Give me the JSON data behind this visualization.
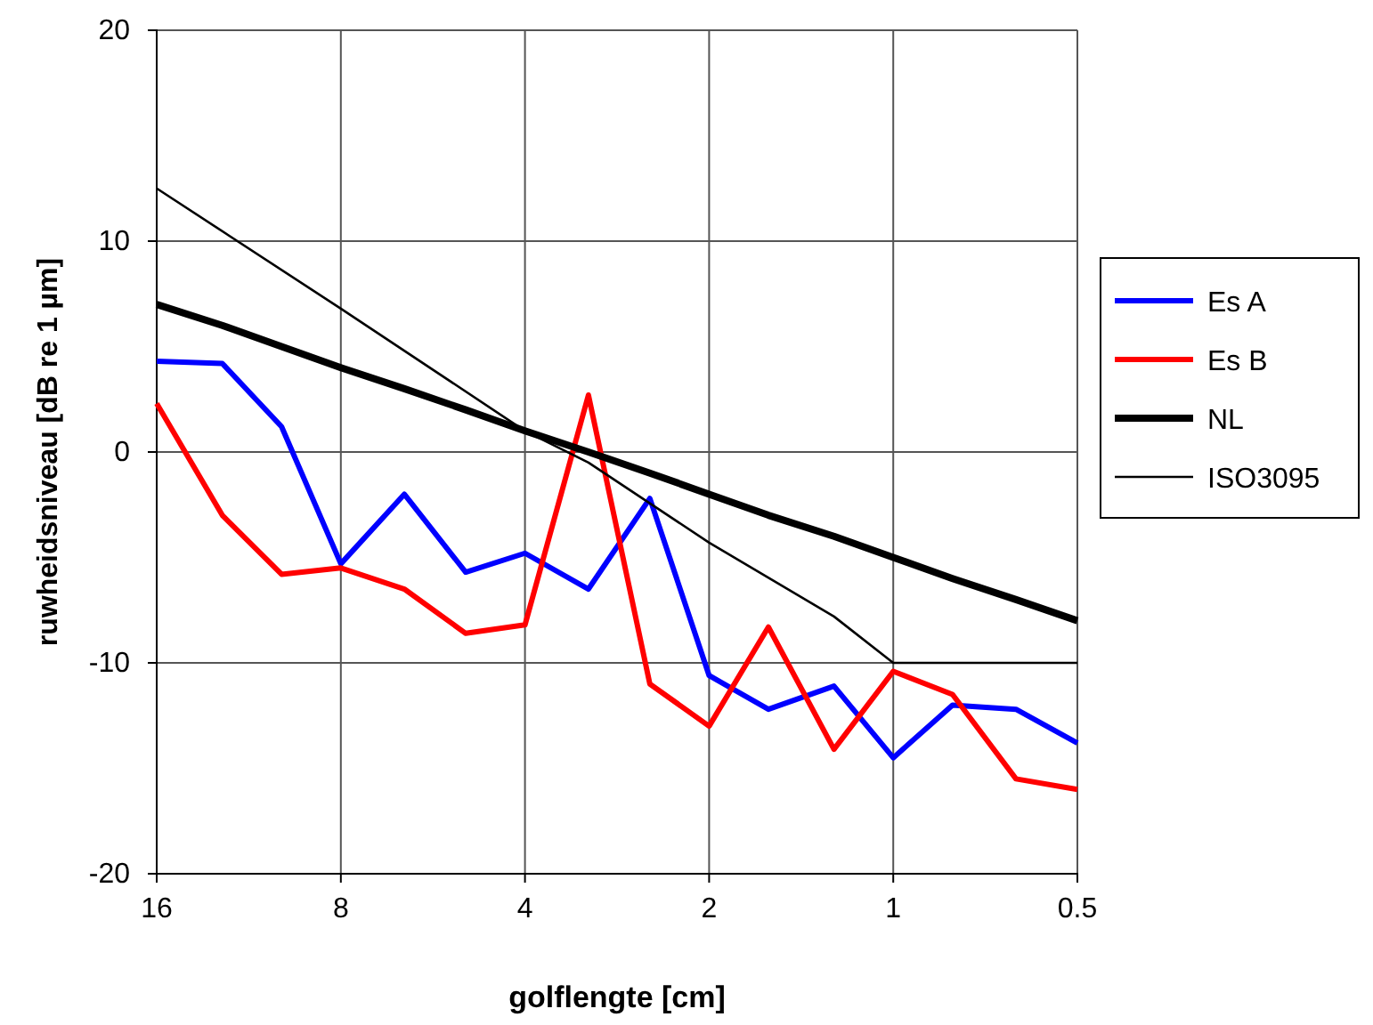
{
  "chart_data": {
    "type": "line",
    "xlabel": "golflengte [cm]",
    "ylabel": "ruwheidsniveau [dB re 1 µm]",
    "x": [
      16,
      12.5,
      10,
      8,
      6.3,
      5,
      4,
      3.15,
      2.5,
      2,
      1.6,
      1.25,
      1,
      0.8,
      0.63,
      0.5
    ],
    "series": [
      {
        "name": "Es A",
        "color": "#0000ff",
        "values": [
          4.3,
          4.2,
          1.2,
          -5.3,
          -2,
          -5.7,
          -4.8,
          -6.5,
          -2.2,
          -10.6,
          -12.2,
          -11.1,
          -14.5,
          -12,
          -12.2,
          -13.8
        ]
      },
      {
        "name": "Es B",
        "color": "#ff0000",
        "values": [
          2.3,
          -3,
          -5.8,
          -5.5,
          -6.5,
          -8.6,
          -8.2,
          2.7,
          -11,
          -13,
          -8.3,
          -14.1,
          -10.4,
          -11.5,
          -15.5,
          -16
        ]
      },
      {
        "name": "NL",
        "color": "#000000",
        "values": [
          7,
          6,
          5,
          4,
          3,
          2,
          1,
          0,
          -1,
          -2,
          -3,
          -4,
          -5,
          -6,
          -7,
          -8
        ]
      },
      {
        "name": "ISO3095",
        "color": "#000000",
        "x": [
          16,
          8,
          4,
          3.15,
          2,
          1.25,
          1,
          0.5
        ],
        "values": [
          12.5,
          6.8,
          1,
          -0.5,
          -4.3,
          -7.8,
          -10,
          -10
        ]
      }
    ],
    "xlim": [
      16,
      0.5
    ],
    "xticks": [
      16,
      8,
      4,
      2,
      1,
      0.5
    ],
    "ylim": [
      -20,
      20
    ],
    "yticks": [
      -20,
      -10,
      0,
      10,
      20
    ],
    "log": "x",
    "grid": true,
    "legend": "right",
    "marker": "none",
    "line_style": "solid"
  }
}
